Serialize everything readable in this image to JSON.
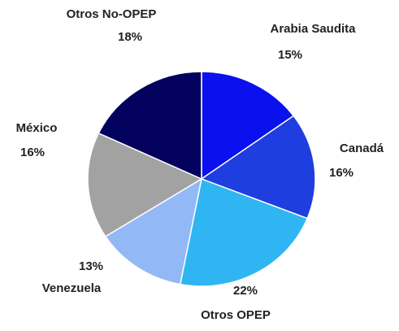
{
  "chart_data": {
    "type": "pie",
    "categories": [
      "Arabia Saudita",
      "Canadá",
      "Otros OPEP",
      "Venezuela",
      "México",
      "Otros No-OPEP"
    ],
    "values": [
      15,
      16,
      22,
      13,
      16,
      18
    ],
    "value_labels": [
      "15%",
      "16%",
      "22%",
      "13%",
      "16%",
      "18%"
    ],
    "colors": [
      "#0a10ee",
      "#1e3ee0",
      "#2fb6f2",
      "#92b8f6",
      "#a2a2a2",
      "#02025e"
    ]
  }
}
